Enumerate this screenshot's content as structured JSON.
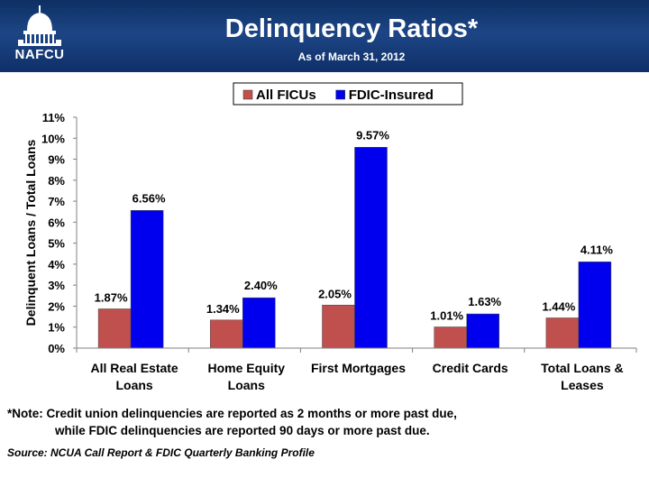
{
  "header": {
    "logo_text": "NAFCU",
    "title": "Delinquency Ratios*",
    "subtitle": "As of March 31, 2012"
  },
  "chart_data": {
    "type": "bar",
    "ylabel": "Delinquent Loans / Total Loans",
    "ylim": [
      0,
      11
    ],
    "yticks": [
      "0%",
      "1%",
      "2%",
      "3%",
      "4%",
      "5%",
      "6%",
      "7%",
      "8%",
      "9%",
      "10%",
      "11%"
    ],
    "categories": [
      [
        "All Real Estate",
        "Loans"
      ],
      [
        "Home Equity",
        "Loans"
      ],
      [
        "First Mortgages"
      ],
      [
        "Credit Cards"
      ],
      [
        "Total Loans &",
        "Leases"
      ]
    ],
    "series": [
      {
        "name": "All FICUs",
        "color": "#c0504d",
        "values": [
          1.87,
          1.34,
          2.05,
          1.01,
          1.44
        ],
        "labels": [
          "1.87%",
          "1.34%",
          "2.05%",
          "1.01%",
          "1.44%"
        ]
      },
      {
        "name": "FDIC-Insured",
        "color": "#0000ee",
        "values": [
          6.56,
          2.4,
          9.57,
          1.63,
          4.11
        ],
        "labels": [
          "6.56%",
          "2.40%",
          "9.57%",
          "1.63%",
          "4.11%"
        ]
      }
    ],
    "legend": "top-center",
    "grid": false
  },
  "footer": {
    "note_line1": "*Note: Credit union delinquencies are reported as 2 months or more past due,",
    "note_line2": "while FDIC delinquencies are reported 90 days or more past due.",
    "source": "Source: NCUA Call Report & FDIC Quarterly Banking Profile"
  }
}
